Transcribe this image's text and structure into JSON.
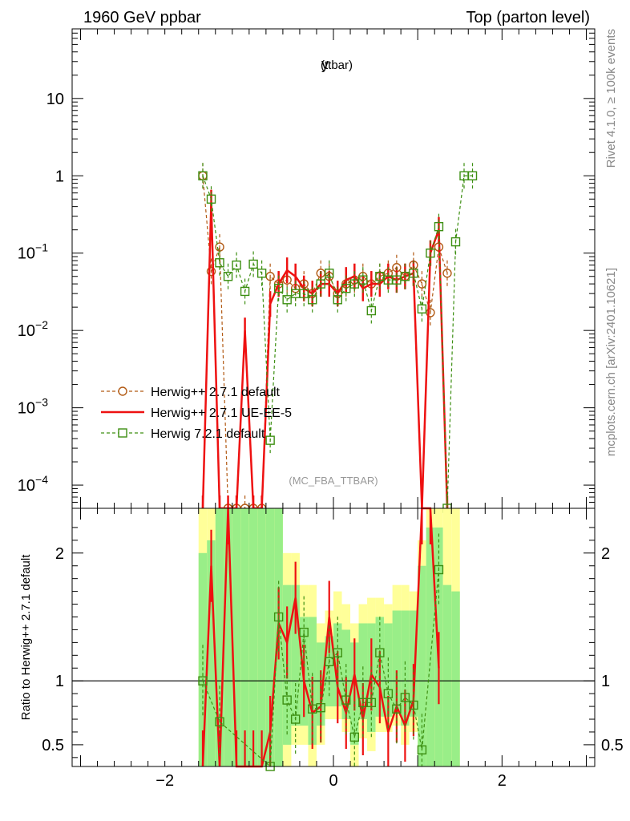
{
  "header": {
    "left_title": "1960 GeV ppbar",
    "right_title": "Top (parton level)"
  },
  "side_labels": {
    "rivet": "Rivet 4.1.0, ≥ 100k events",
    "mcplots": "mcplots.cern.ch [arXiv:2401.10621]"
  },
  "chart_data": [
    {
      "panel": "main",
      "type": "line",
      "title": "y",
      "title_sub": "(ttbar)",
      "analysis_label": "(MC_FBA_TTBAR)",
      "xlim": [
        -3.1,
        3.1
      ],
      "ylim_log10": [
        -4.3,
        1.9
      ],
      "yscale": "log",
      "x_ticks": [
        -2,
        0,
        2
      ],
      "x_tick_labels": [
        "−2",
        "0",
        "2"
      ],
      "y_ticks": [
        {
          "value": 10,
          "label": "10"
        },
        {
          "value": 1,
          "label": "1"
        },
        {
          "value": 0.1,
          "label": "10",
          "exp": "−1"
        },
        {
          "value": 0.01,
          "label": "10",
          "exp": "−2"
        },
        {
          "value": 0.001,
          "label": "10",
          "exp": "−3"
        },
        {
          "value": 0.0001,
          "label": "10",
          "exp": "−4"
        }
      ],
      "legend": {
        "position": "bottom-left"
      },
      "series": [
        {
          "name": "Herwig++ 2.7.1 default",
          "color": "#b25a14",
          "style": "dashed",
          "marker": "circle",
          "x": [
            -1.55,
            -1.45,
            -1.35,
            -1.25,
            -1.15,
            -1.05,
            -0.95,
            -0.85,
            -0.75,
            -0.65,
            -0.55,
            -0.45,
            -0.35,
            -0.25,
            -0.15,
            -0.05,
            0.05,
            0.15,
            0.25,
            0.35,
            0.45,
            0.55,
            0.65,
            0.75,
            0.85,
            0.95,
            1.05,
            1.15,
            1.25,
            1.35
          ],
          "y": [
            1.0,
            0.058,
            0.12,
            5e-05,
            5e-05,
            5e-05,
            5e-05,
            5e-05,
            0.05,
            0.04,
            0.045,
            0.035,
            0.04,
            0.03,
            0.055,
            0.05,
            0.03,
            0.04,
            0.045,
            0.05,
            0.04,
            0.05,
            0.055,
            0.065,
            0.05,
            0.07,
            0.04,
            0.017,
            0.12,
            0.055
          ]
        },
        {
          "name": "Herwig++ 2.7.1 UE-EE-5",
          "color": "#ee1111",
          "style": "solid",
          "marker": "none",
          "x": [
            -1.55,
            -1.45,
            -1.35,
            -1.25,
            -1.15,
            -1.05,
            -0.95,
            -0.85,
            -0.75,
            -0.65,
            -0.55,
            -0.45,
            -0.35,
            -0.25,
            -0.15,
            -0.05,
            0.05,
            0.15,
            0.25,
            0.35,
            0.45,
            0.55,
            0.65,
            0.75,
            0.85,
            0.95,
            1.05,
            1.15,
            1.25,
            1.35
          ],
          "y": [
            3e-05,
            0.45,
            3e-05,
            3e-05,
            3e-05,
            0.01,
            3e-05,
            3e-05,
            0.022,
            0.04,
            0.06,
            0.05,
            0.035,
            0.03,
            0.04,
            0.04,
            0.03,
            0.045,
            0.05,
            0.035,
            0.04,
            0.04,
            0.05,
            0.045,
            0.05,
            0.055,
            3e-05,
            0.1,
            0.2,
            3e-05
          ]
        },
        {
          "name": "Herwig 7.2.1 default",
          "color": "#3d8f12",
          "style": "dashed",
          "marker": "square",
          "x": [
            -1.55,
            -1.45,
            -1.35,
            -1.25,
            -1.15,
            -1.05,
            -0.95,
            -0.85,
            -0.75,
            -0.65,
            -0.55,
            -0.45,
            -0.35,
            -0.25,
            -0.15,
            -0.05,
            0.05,
            0.15,
            0.25,
            0.35,
            0.45,
            0.55,
            0.65,
            0.75,
            0.85,
            0.95,
            1.05,
            1.15,
            1.25,
            1.35,
            1.45,
            1.55,
            1.65
          ],
          "y": [
            1.0,
            0.5,
            0.075,
            0.05,
            0.07,
            0.032,
            0.072,
            0.055,
            0.00038,
            0.035,
            0.025,
            0.03,
            0.03,
            0.025,
            0.04,
            0.055,
            0.025,
            0.035,
            0.04,
            0.045,
            0.018,
            0.05,
            0.045,
            0.045,
            0.05,
            0.055,
            0.019,
            0.1,
            0.22,
            5e-05,
            0.14,
            1.0,
            1.0
          ]
        }
      ]
    },
    {
      "panel": "ratio",
      "type": "line",
      "ylabel": "Ratio to Herwig++ 2.7.1 default",
      "xlim": [
        -3.1,
        3.1
      ],
      "ylim": [
        0.33,
        2.35
      ],
      "x_ticks": [
        -2,
        0,
        2
      ],
      "x_tick_labels": [
        "−2",
        "0",
        "2"
      ],
      "y_ticks": [
        0.5,
        1,
        2
      ],
      "y_tick_labels": [
        "0.5",
        "1",
        "2"
      ],
      "reference_line": 1,
      "bands": {
        "x_edges": [
          -1.6,
          -1.5,
          -1.4,
          -1.3,
          -1.2,
          -1.1,
          -1.0,
          -0.9,
          -0.8,
          -0.7,
          -0.6,
          -0.5,
          -0.4,
          -0.3,
          -0.2,
          -0.1,
          0.0,
          0.1,
          0.2,
          0.3,
          0.4,
          0.5,
          0.6,
          0.7,
          0.8,
          0.9,
          1.0,
          1.1,
          1.2,
          1.3,
          1.4,
          1.5
        ],
        "outer_low": [
          0.3,
          0.3,
          0.3,
          0.3,
          0.3,
          0.3,
          0.3,
          0.3,
          0.3,
          0.3,
          0.33,
          0.5,
          0.5,
          0.33,
          0.5,
          0.7,
          0.7,
          0.6,
          0.33,
          0.55,
          0.45,
          0.6,
          0.6,
          0.65,
          0.5,
          0.6,
          0.3,
          0.3,
          0.3,
          0.3,
          0.3
        ],
        "outer_high": [
          2.4,
          2.4,
          2.4,
          2.4,
          2.4,
          2.4,
          2.4,
          2.4,
          2.4,
          2.4,
          2.0,
          2.0,
          1.75,
          1.75,
          1.45,
          1.55,
          1.7,
          1.6,
          1.45,
          1.6,
          1.65,
          1.65,
          1.6,
          1.75,
          1.75,
          1.7,
          2.1,
          2.4,
          2.4,
          2.4,
          2.4
        ],
        "inner_low": [
          0.3,
          0.3,
          0.3,
          0.3,
          0.3,
          0.3,
          0.3,
          0.3,
          0.3,
          0.3,
          0.5,
          0.65,
          0.65,
          0.5,
          0.65,
          0.8,
          0.8,
          0.7,
          0.5,
          0.7,
          0.6,
          0.72,
          0.72,
          0.75,
          0.65,
          0.72,
          0.3,
          0.3,
          0.3,
          0.3,
          0.3
        ],
        "inner_high": [
          2.0,
          2.1,
          2.4,
          2.4,
          2.4,
          2.4,
          2.4,
          2.4,
          2.4,
          2.4,
          1.75,
          1.75,
          1.5,
          1.5,
          1.3,
          1.35,
          1.45,
          1.4,
          1.3,
          1.45,
          1.45,
          1.5,
          1.45,
          1.55,
          1.55,
          1.55,
          1.9,
          2.2,
          2.2,
          1.75,
          1.7
        ]
      },
      "series": [
        {
          "name": "Herwig++ 2.7.1 UE-EE-5",
          "color": "#ee1111",
          "style": "solid",
          "x": [
            -1.55,
            -1.45,
            -1.35,
            -1.25,
            -1.15,
            -1.05,
            -0.95,
            -0.85,
            -0.75,
            -0.65,
            -0.55,
            -0.45,
            -0.35,
            -0.25,
            -0.15,
            -0.05,
            0.05,
            0.15,
            0.25,
            0.35,
            0.45,
            0.55,
            0.65,
            0.75,
            0.85,
            0.95,
            1.05,
            1.15,
            1.25
          ],
          "y": [
            0.3,
            1.9,
            0.3,
            2.4,
            0.3,
            0.3,
            0.3,
            0.3,
            0.6,
            1.45,
            1.3,
            1.65,
            1.0,
            0.75,
            0.8,
            1.5,
            0.95,
            0.75,
            1.05,
            0.7,
            1.05,
            0.95,
            0.6,
            0.8,
            0.65,
            0.85,
            2.4,
            2.4,
            1.1
          ]
        },
        {
          "name": "Herwig 7.2.1 default",
          "color": "#3d8f12",
          "style": "dashed",
          "marker": "square",
          "x": [
            -1.55,
            -1.35,
            -0.75,
            -0.65,
            -0.55,
            -0.45,
            -0.35,
            -0.25,
            -0.15,
            -0.05,
            0.05,
            0.15,
            0.25,
            0.35,
            0.45,
            0.55,
            0.65,
            0.75,
            0.85,
            0.95,
            1.05,
            1.25
          ],
          "y": [
            1.0,
            0.68,
            0.3,
            1.5,
            0.85,
            0.7,
            1.38,
            0.78,
            0.79,
            1.15,
            1.22,
            0.85,
            0.56,
            0.83,
            0.83,
            1.22,
            0.9,
            0.78,
            0.87,
            0.81,
            0.46,
            1.87
          ]
        }
      ]
    }
  ]
}
